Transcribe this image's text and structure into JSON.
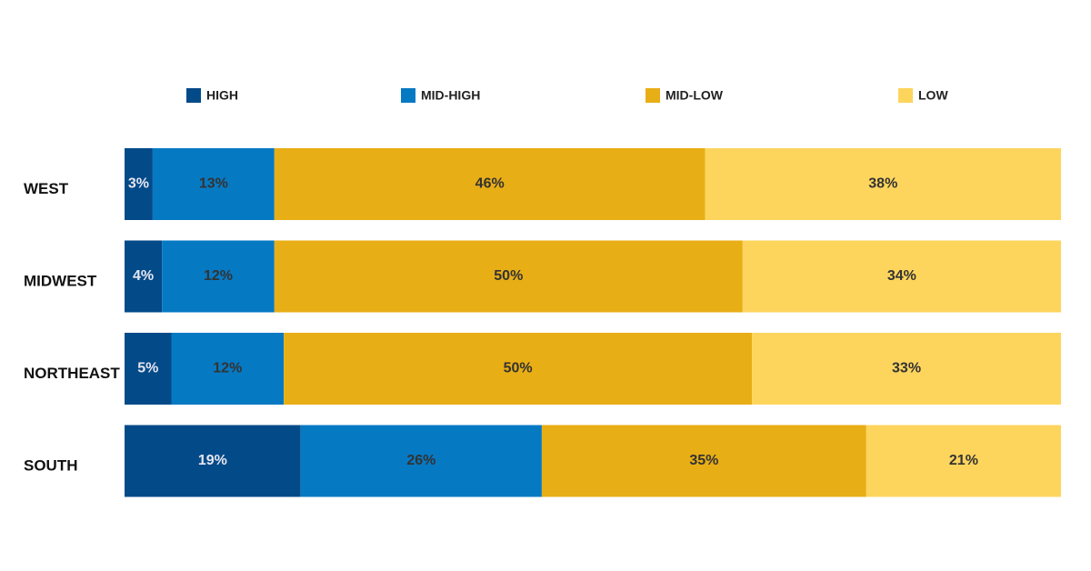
{
  "chart_data": {
    "type": "stacked-barh",
    "categories": [
      "WEST",
      "MIDWEST",
      "NORTHEAST",
      "SOUTH"
    ],
    "series": [
      {
        "name": "HIGH",
        "color": "#034a89",
        "values": [
          3,
          4,
          5,
          19
        ],
        "value_labels": [
          "3%",
          "4%",
          "5%",
          "19%"
        ]
      },
      {
        "name": "MID-HIGH",
        "color": "#0679c3",
        "values": [
          13,
          12,
          12,
          26
        ],
        "value_labels": [
          "13%",
          "12%",
          "12%",
          "26%"
        ]
      },
      {
        "name": "MID-LOW",
        "color": "#e8ae15",
        "values": [
          46,
          50,
          50,
          35
        ],
        "value_labels": [
          "46%",
          "50%",
          "50%",
          "35%"
        ]
      },
      {
        "name": "LOW",
        "color": "#fdd55d",
        "values": [
          38,
          34,
          33,
          21
        ],
        "value_labels": [
          "38%",
          "34%",
          "33%",
          "21%"
        ]
      }
    ],
    "legend": "top"
  }
}
